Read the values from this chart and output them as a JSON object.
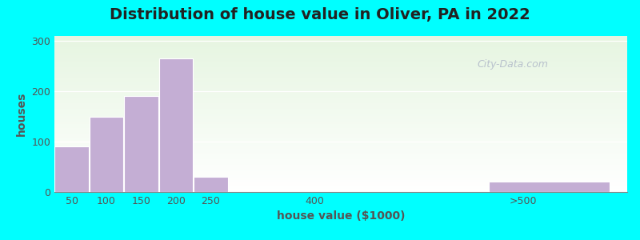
{
  "title": "Distribution of house value in Oliver, PA in 2022",
  "xlabel": "house value ($1000)",
  "ylabel": "houses",
  "bar_lefts": [
    25,
    75,
    125,
    175,
    225,
    475,
    650
  ],
  "bar_widths": [
    50,
    50,
    50,
    50,
    50,
    50,
    175
  ],
  "bar_heights": [
    90,
    150,
    190,
    265,
    30,
    0,
    20
  ],
  "xtick_positions": [
    50,
    100,
    150,
    200,
    250,
    400,
    700
  ],
  "xtick_labels": [
    "50",
    "100",
    "150",
    "200",
    "250",
    "400",
    ">500"
  ],
  "xlim": [
    25,
    850
  ],
  "bar_color": "#c4aed4",
  "bar_edgecolor": "#ffffff",
  "yticks": [
    0,
    100,
    200,
    300
  ],
  "ylim": [
    0,
    310
  ],
  "figure_bg": "#00ffff",
  "title_fontsize": 14,
  "label_fontsize": 10,
  "tick_fontsize": 9,
  "watermark_text": "City-Data.com",
  "watermark_color": "#b0b8c8"
}
